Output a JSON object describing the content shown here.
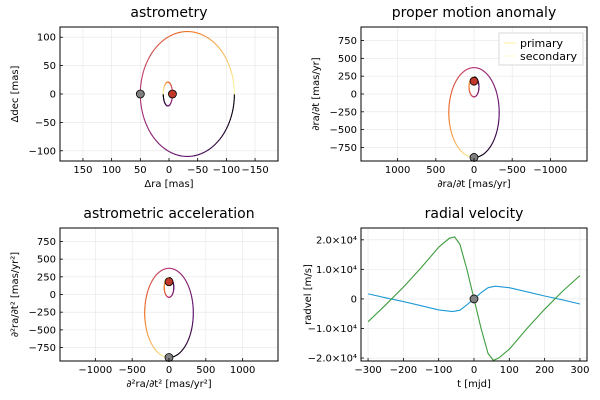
{
  "colors": {
    "orbit_start": "#000004",
    "orbit_mid1": "#5c126e",
    "orbit_mid2": "#b63679",
    "orbit_mid3": "#f1711f",
    "orbit_end": "#fcffa4",
    "marker_primary": "#808080",
    "marker_secondary": "#c0392b",
    "rv_primary": "#1f9ad6",
    "rv_secondary": "#3d9c3d",
    "legend_primary": "#fff6bf",
    "legend_secondary": "#fffbe0"
  },
  "chart_data": [
    {
      "type": "line",
      "title": "astrometry",
      "xlabel": "Δra [mas]",
      "ylabel": "Δdec [mas]",
      "xlim": [
        190,
        -190
      ],
      "ylim": [
        -118,
        118
      ],
      "xticks": [
        150,
        100,
        50,
        0,
        -50,
        -100,
        -150
      ],
      "xtick_labels": [
        "150",
        "100",
        "50",
        "0",
        "−50",
        "−100",
        "−150"
      ],
      "yticks": [
        -100,
        -50,
        0,
        50,
        100
      ],
      "ytick_labels": [
        "−100",
        "−50",
        "0",
        "50",
        "100"
      ],
      "grid": true,
      "orbits": [
        {
          "cx": -32,
          "cy": 0,
          "rx": 82,
          "ry": 110,
          "phase": 180,
          "sweep": "ccw"
        },
        {
          "cx": 2,
          "cy": 0,
          "rx": 8,
          "ry": 21,
          "phase": 0,
          "sweep": "cw"
        }
      ],
      "markers": [
        {
          "x": 50,
          "y": 0,
          "role": "primary"
        },
        {
          "x": -6,
          "y": 0,
          "role": "secondary"
        }
      ]
    },
    {
      "type": "line",
      "title": "proper motion anomaly",
      "xlabel": "∂ra/∂t [mas/yr]",
      "ylabel": "∂ra/∂t [mas/yr]",
      "xlim": [
        1480,
        -1480
      ],
      "ylim": [
        -940,
        940
      ],
      "xticks": [
        1000,
        500,
        0,
        -500,
        -1000
      ],
      "xtick_labels": [
        "1000",
        "500",
        "0",
        "−500",
        "−1000"
      ],
      "yticks": [
        -750,
        -500,
        -250,
        0,
        250,
        500,
        750
      ],
      "ytick_labels": [
        "−750",
        "−500",
        "−250",
        "0",
        "250",
        "500",
        "750"
      ],
      "grid": true,
      "legend": {
        "position": "top-right",
        "entries": [
          "primary",
          "secondary"
        ]
      },
      "orbits": [
        {
          "cx": 0,
          "cy": -260,
          "rx": 330,
          "ry": 630,
          "phase": 270,
          "sweep": "cw"
        },
        {
          "cx": 0,
          "cy": 100,
          "rx": 65,
          "ry": 140,
          "phase": 90,
          "sweep": "ccw"
        }
      ],
      "markers": [
        {
          "x": 0,
          "y": -890,
          "role": "primary"
        },
        {
          "x": 0,
          "y": 180,
          "role": "secondary"
        }
      ]
    },
    {
      "type": "line",
      "title": "astrometric acceleration",
      "xlabel": "∂²ra/∂t² [mas/yr²]",
      "ylabel": "∂²ra/∂t² [mas/yr²]",
      "xlim": [
        -1480,
        1480
      ],
      "ylim": [
        -940,
        940
      ],
      "xticks": [
        -1000,
        -500,
        0,
        500,
        1000
      ],
      "xtick_labels": [
        "−1000",
        "−500",
        "0",
        "500",
        "1000"
      ],
      "yticks": [
        -750,
        -500,
        -250,
        0,
        250,
        500,
        750
      ],
      "ytick_labels": [
        "−750",
        "−500",
        "−250",
        "0",
        "250",
        "500",
        "750"
      ],
      "grid": true,
      "orbits": [
        {
          "cx": 0,
          "cy": -260,
          "rx": 330,
          "ry": 630,
          "phase": 270,
          "sweep": "ccw"
        },
        {
          "cx": 0,
          "cy": 100,
          "rx": 65,
          "ry": 140,
          "phase": 90,
          "sweep": "cw"
        }
      ],
      "markers": [
        {
          "x": 0,
          "y": -890,
          "role": "primary"
        },
        {
          "x": 0,
          "y": 180,
          "role": "secondary"
        }
      ]
    },
    {
      "type": "line",
      "title": "radial velocity",
      "xlabel": "t [mjd]",
      "ylabel": "radvel [m/s]",
      "xlim": [
        -320,
        320
      ],
      "ylim": [
        -21000,
        24000
      ],
      "xticks": [
        -300,
        -200,
        -100,
        0,
        100,
        200,
        300
      ],
      "xtick_labels": [
        "−300",
        "−200",
        "−100",
        "0",
        "100",
        "200",
        "300"
      ],
      "yticks": [
        -20000,
        -10000,
        0,
        10000,
        20000
      ],
      "ytick_labels": [
        "−2.0×10⁴",
        "−1.0×10⁴",
        "0",
        "1.0×10⁴",
        "2.0×10⁴"
      ],
      "grid": true,
      "series": [
        {
          "role": "primary",
          "x": [
            -300,
            -250,
            -200,
            -150,
            -100,
            -60,
            -40,
            -20,
            0,
            20,
            40,
            60,
            100,
            150,
            200,
            250,
            300
          ],
          "values": [
            1700,
            400,
            -900,
            -2300,
            -3700,
            -4300,
            -3800,
            -2000,
            0,
            2100,
            3800,
            4300,
            3800,
            2400,
            1000,
            -300,
            -1700
          ]
        },
        {
          "role": "secondary",
          "x": [
            -300,
            -250,
            -200,
            -150,
            -100,
            -70,
            -55,
            -40,
            -20,
            0,
            20,
            40,
            55,
            70,
            100,
            150,
            200,
            250,
            300
          ],
          "values": [
            -7700,
            -2000,
            4000,
            10500,
            17500,
            20500,
            21000,
            18500,
            10000,
            0,
            -10000,
            -18500,
            -20800,
            -20000,
            -17000,
            -10000,
            -3500,
            2500,
            7900
          ]
        }
      ],
      "markers": [
        {
          "x": 0,
          "y": 0,
          "role": "primary"
        }
      ]
    }
  ]
}
